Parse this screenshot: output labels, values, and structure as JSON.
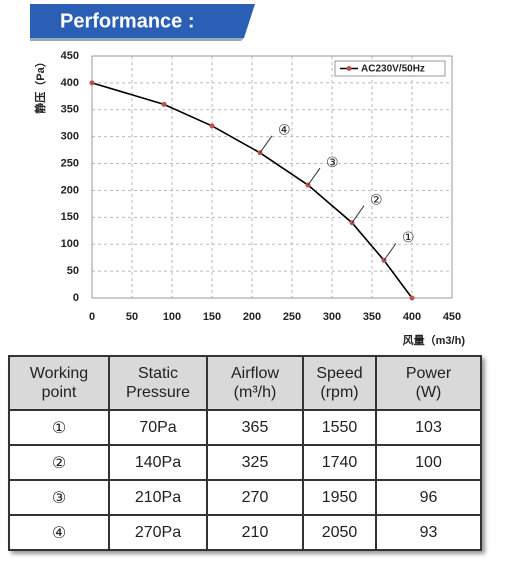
{
  "header": {
    "title": "Performance :"
  },
  "chart_data": {
    "type": "line",
    "y_label": "静压（Pa）",
    "x_label": "风量（m3/h)",
    "xlim": [
      0,
      450
    ],
    "xticks": [
      0,
      50,
      100,
      150,
      200,
      250,
      300,
      350,
      400,
      450
    ],
    "ylim": [
      0,
      450
    ],
    "yticks": [
      0,
      50,
      100,
      150,
      200,
      250,
      300,
      350,
      400,
      450
    ],
    "grid": true,
    "legend": "upper right",
    "series": [
      {
        "name": "AC230V/50Hz",
        "color": "#000000",
        "marker_color": "#c0504d",
        "x": [
          0,
          90,
          150,
          210,
          270,
          325,
          365,
          400
        ],
        "values": [
          400,
          360,
          320,
          270,
          210,
          140,
          70,
          0
        ]
      }
    ],
    "annotations": [
      {
        "text": "①",
        "x": 365,
        "y": 70
      },
      {
        "text": "②",
        "x": 325,
        "y": 140
      },
      {
        "text": "③",
        "x": 270,
        "y": 210
      },
      {
        "text": "④",
        "x": 210,
        "y": 270
      }
    ]
  },
  "table": {
    "header": [
      [
        "Working",
        "point"
      ],
      [
        "Static",
        "Pressure"
      ],
      [
        "Airflow",
        "(m³/h)"
      ],
      [
        "Speed",
        "(rpm)"
      ],
      [
        "Power",
        "(W)"
      ]
    ],
    "rows": [
      [
        "①",
        "70Pa",
        "365",
        "1550",
        "103"
      ],
      [
        "②",
        "140Pa",
        "325",
        "1740",
        "100"
      ],
      [
        "③",
        "210Pa",
        "270",
        "1950",
        "96"
      ],
      [
        "④",
        "270Pa",
        "210",
        "2050",
        "93"
      ]
    ]
  }
}
